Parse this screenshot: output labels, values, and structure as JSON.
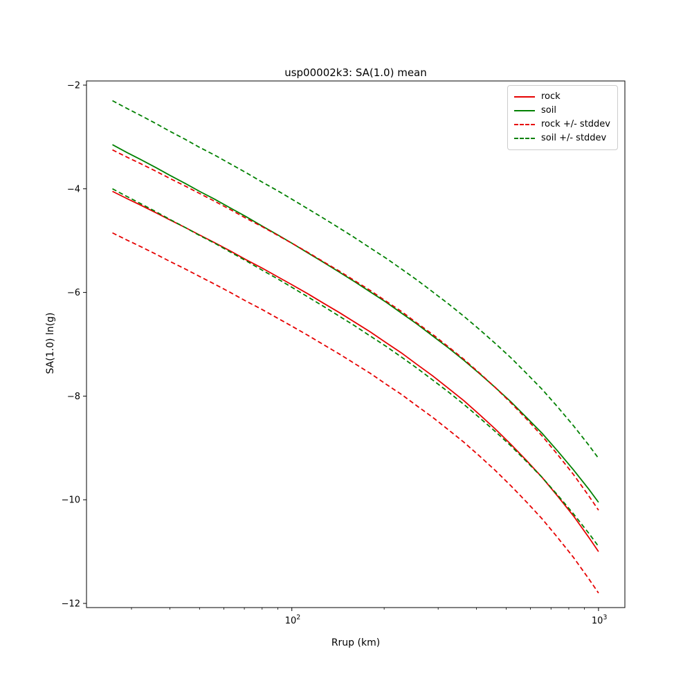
{
  "chart": {
    "title": "usp00002k3: SA(1.0) mean",
    "xlabel": "Rrup (km)",
    "ylabel": "SA(1.0) ln(g)"
  },
  "chart_data": {
    "type": "line",
    "title": "usp00002k3: SA(1.0) mean",
    "xlabel": "Rrup (km)",
    "ylabel": "SA(1.0) ln(g)",
    "x_scale": "log",
    "grid": false,
    "xlim": [
      21.4,
      1219
    ],
    "ylim": [
      -12.08,
      -1.92
    ],
    "x_major_ticks": [
      100,
      1000
    ],
    "x_major_tick_labels": [
      {
        "base": "10",
        "exp": "2"
      },
      {
        "base": "10",
        "exp": "3"
      }
    ],
    "y_ticks": [
      -2,
      -4,
      -6,
      -8,
      -10,
      -12
    ],
    "y_tick_labels": [
      "−2",
      "−4",
      "−6",
      "−8",
      "−10",
      "−12"
    ],
    "x": [
      26,
      29,
      32,
      36,
      40,
      45,
      50,
      56,
      63,
      71,
      80,
      90,
      100,
      113,
      127,
      143,
      160,
      180,
      203,
      228,
      256,
      288,
      324,
      364,
      410,
      460,
      518,
      582,
      655,
      736,
      828,
      931,
      1000
    ],
    "series": [
      {
        "name": "rock",
        "color": "#e60000",
        "style": "solid",
        "mean": [
          -4.05,
          -4.19,
          -4.31,
          -4.46,
          -4.6,
          -4.75,
          -4.89,
          -5.04,
          -5.2,
          -5.37,
          -5.53,
          -5.7,
          -5.85,
          -6.03,
          -6.21,
          -6.39,
          -6.57,
          -6.76,
          -6.97,
          -7.17,
          -7.39,
          -7.61,
          -7.85,
          -8.09,
          -8.36,
          -8.63,
          -8.93,
          -9.24,
          -9.57,
          -9.93,
          -10.31,
          -10.73,
          -11.0
        ],
        "stddev": 0.8
      },
      {
        "name": "soil",
        "color": "#008000",
        "style": "solid",
        "mean": [
          -3.15,
          -3.3,
          -3.43,
          -3.59,
          -3.74,
          -3.9,
          -4.05,
          -4.2,
          -4.37,
          -4.54,
          -4.72,
          -4.89,
          -5.05,
          -5.24,
          -5.42,
          -5.61,
          -5.79,
          -5.99,
          -6.19,
          -6.4,
          -6.61,
          -6.84,
          -7.07,
          -7.31,
          -7.57,
          -7.83,
          -8.11,
          -8.41,
          -8.72,
          -9.06,
          -9.42,
          -9.8,
          -10.05
        ],
        "stddev": 0.85
      }
    ],
    "legend": {
      "position": "upper right",
      "items": [
        {
          "label": "rock",
          "color": "#e60000",
          "dashed": false
        },
        {
          "label": "soil",
          "color": "#008000",
          "dashed": false
        },
        {
          "label": "rock +/- stddev",
          "color": "#e60000",
          "dashed": true
        },
        {
          "label": "soil +/- stddev",
          "color": "#008000",
          "dashed": true
        }
      ]
    }
  }
}
